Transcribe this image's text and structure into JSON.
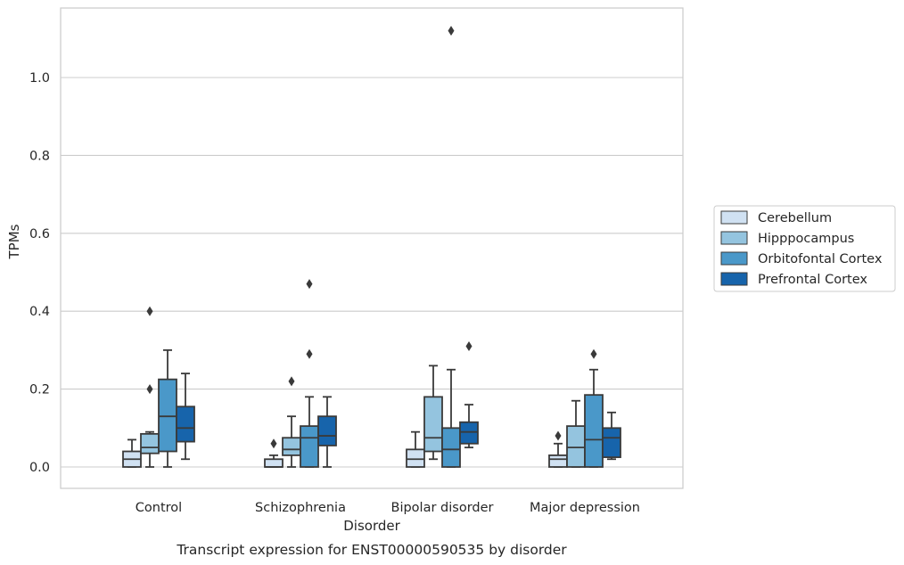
{
  "chart_data": {
    "type": "box",
    "caption": "Transcript expression for ENST00000590535 by disorder",
    "xlabel": "Disorder",
    "ylabel": "TPMs",
    "ylim": [
      -0.055,
      1.18
    ],
    "yticks": [
      0.0,
      0.2,
      0.4,
      0.6,
      0.8,
      1.0
    ],
    "ytick_labels": [
      "0.0",
      "0.2",
      "0.4",
      "0.6",
      "0.8",
      "1.0"
    ],
    "grid": true,
    "legend_position": "right-center",
    "categories": [
      "Control",
      "Schizophrenia",
      "Bipolar disorder",
      "Major depression"
    ],
    "series": [
      {
        "name": "Cerebellum",
        "color": "#d0e1f2",
        "boxes": [
          {
            "whisker_low": 0.0,
            "q1": 0.0,
            "median": 0.02,
            "q3": 0.04,
            "whisker_high": 0.07,
            "outliers": []
          },
          {
            "whisker_low": 0.0,
            "q1": 0.0,
            "median": 0.0,
            "q3": 0.02,
            "whisker_high": 0.03,
            "outliers": [
              0.06
            ]
          },
          {
            "whisker_low": 0.0,
            "q1": 0.0,
            "median": 0.02,
            "q3": 0.045,
            "whisker_high": 0.09,
            "outliers": []
          },
          {
            "whisker_low": 0.0,
            "q1": 0.0,
            "median": 0.02,
            "q3": 0.03,
            "whisker_high": 0.06,
            "outliers": [
              0.08
            ]
          }
        ]
      },
      {
        "name": "Hipppocampus",
        "color": "#94c4df",
        "boxes": [
          {
            "whisker_low": 0.0,
            "q1": 0.035,
            "median": 0.05,
            "q3": 0.085,
            "whisker_high": 0.09,
            "outliers": [
              0.2,
              0.4
            ]
          },
          {
            "whisker_low": 0.0,
            "q1": 0.03,
            "median": 0.045,
            "q3": 0.075,
            "whisker_high": 0.13,
            "outliers": [
              0.22
            ]
          },
          {
            "whisker_low": 0.02,
            "q1": 0.04,
            "median": 0.075,
            "q3": 0.18,
            "whisker_high": 0.26,
            "outliers": []
          },
          {
            "whisker_low": 0.0,
            "q1": 0.0,
            "median": 0.05,
            "q3": 0.105,
            "whisker_high": 0.17,
            "outliers": []
          }
        ]
      },
      {
        "name": "Orbitofontal Cortex",
        "color": "#4a98c9",
        "boxes": [
          {
            "whisker_low": 0.0,
            "q1": 0.04,
            "median": 0.13,
            "q3": 0.225,
            "whisker_high": 0.3,
            "outliers": []
          },
          {
            "whisker_low": 0.0,
            "q1": 0.0,
            "median": 0.075,
            "q3": 0.105,
            "whisker_high": 0.18,
            "outliers": [
              0.29,
              0.47
            ]
          },
          {
            "whisker_low": 0.0,
            "q1": 0.0,
            "median": 0.045,
            "q3": 0.1,
            "whisker_high": 0.25,
            "outliers": [
              1.12
            ]
          },
          {
            "whisker_low": 0.0,
            "q1": 0.0,
            "median": 0.07,
            "q3": 0.185,
            "whisker_high": 0.25,
            "outliers": [
              0.29
            ]
          }
        ]
      },
      {
        "name": "Prefrontal Cortex",
        "color": "#1764ab",
        "boxes": [
          {
            "whisker_low": 0.02,
            "q1": 0.065,
            "median": 0.1,
            "q3": 0.155,
            "whisker_high": 0.24,
            "outliers": []
          },
          {
            "whisker_low": 0.0,
            "q1": 0.055,
            "median": 0.08,
            "q3": 0.13,
            "whisker_high": 0.18,
            "outliers": []
          },
          {
            "whisker_low": 0.05,
            "q1": 0.06,
            "median": 0.09,
            "q3": 0.115,
            "whisker_high": 0.16,
            "outliers": [
              0.31
            ]
          },
          {
            "whisker_low": 0.02,
            "q1": 0.025,
            "median": 0.075,
            "q3": 0.1,
            "whisker_high": 0.14,
            "outliers": []
          }
        ]
      }
    ]
  }
}
